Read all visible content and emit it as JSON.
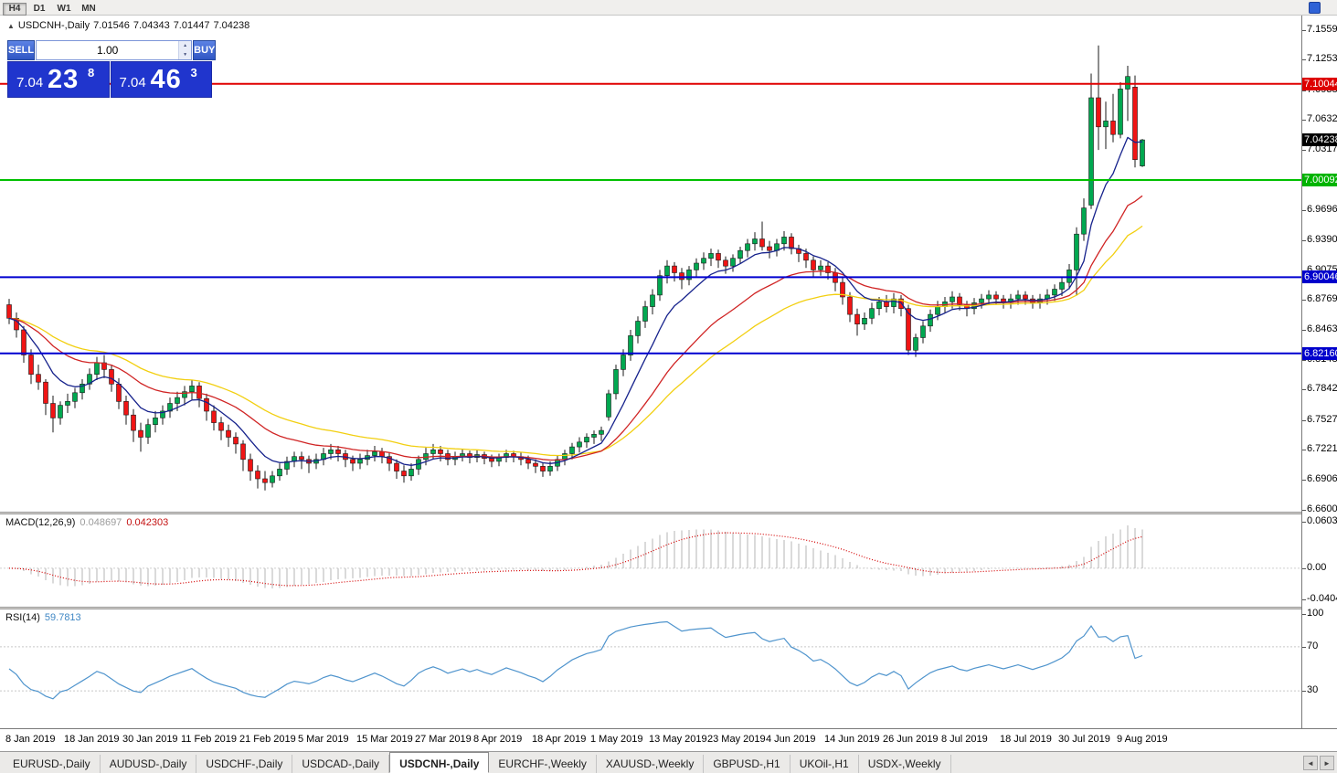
{
  "toolbar": {
    "timeframes": [
      {
        "label": "H4",
        "active": true
      },
      {
        "label": "D1",
        "active": false
      },
      {
        "label": "W1",
        "active": false
      },
      {
        "label": "MN",
        "active": false
      }
    ]
  },
  "chart_header": {
    "toggle_icon": "▲",
    "symbol": "USDCNH-,Daily",
    "open": "7.01546",
    "high": "7.04343",
    "low": "7.01447",
    "close": "7.04238"
  },
  "trade_panel": {
    "sell_label": "SELL",
    "buy_label": "BUY",
    "volume": "1.00",
    "spin_up": "▲",
    "spin_down": "▼",
    "sell_price": {
      "base": "7.04",
      "big": "23",
      "sup": "8"
    },
    "buy_price": {
      "base": "7.04",
      "big": "46",
      "sup": "3"
    }
  },
  "price_axis": {
    "ticks": [
      "7.15590",
      "7.12530",
      "7.09380",
      "7.06320",
      "7.03170",
      "6.96960",
      "6.93900",
      "6.90750",
      "6.87690",
      "6.84630",
      "6.81480",
      "6.78420",
      "6.75270",
      "6.72210",
      "6.69060",
      "6.66000"
    ],
    "badges": [
      {
        "label": "7.10044",
        "color": "#dd0000"
      },
      {
        "label": "7.04238",
        "color": "#000000"
      },
      {
        "label": "7.00092",
        "color": "#00b400"
      },
      {
        "label": "6.90046",
        "color": "#0000cc"
      },
      {
        "label": "6.82160",
        "color": "#0000cc"
      }
    ]
  },
  "hlines": [
    {
      "price": 7.10044,
      "color": "#e00000",
      "width": 2
    },
    {
      "price": 7.00092,
      "color": "#00c000",
      "width": 2
    },
    {
      "price": 6.90046,
      "color": "#0000d0",
      "width": 2
    },
    {
      "price": 6.8216,
      "color": "#0000d0",
      "width": 2
    }
  ],
  "macd_panel": {
    "label": "MACD(12,26,9)",
    "value_main": "0.048697",
    "value_signal": "0.042303",
    "ticks": [
      {
        "v": 0.060356,
        "label": "0.060356"
      },
      {
        "v": 0,
        "label": "0.00"
      },
      {
        "v": -0.040416,
        "label": "-0.040416"
      }
    ]
  },
  "rsi_panel": {
    "label": "RSI(14)",
    "value": "59.7813",
    "ticks": [
      {
        "v": 100,
        "label": "100"
      },
      {
        "v": 70,
        "label": "70"
      },
      {
        "v": 30,
        "label": "30"
      }
    ]
  },
  "date_axis": {
    "labels": [
      {
        "i": 0,
        "label": "8 Jan 2019"
      },
      {
        "i": 8,
        "label": "18 Jan 2019"
      },
      {
        "i": 16,
        "label": "30 Jan 2019"
      },
      {
        "i": 24,
        "label": "11 Feb 2019"
      },
      {
        "i": 32,
        "label": "21 Feb 2019"
      },
      {
        "i": 40,
        "label": "5 Mar 2019"
      },
      {
        "i": 48,
        "label": "15 Mar 2019"
      },
      {
        "i": 56,
        "label": "27 Mar 2019"
      },
      {
        "i": 64,
        "label": "8 Apr 2019"
      },
      {
        "i": 72,
        "label": "18 Apr 2019"
      },
      {
        "i": 80,
        "label": "1 May 2019"
      },
      {
        "i": 88,
        "label": "13 May 2019"
      },
      {
        "i": 96,
        "label": "23 May 2019"
      },
      {
        "i": 104,
        "label": "4 Jun 2019"
      },
      {
        "i": 112,
        "label": "14 Jun 2019"
      },
      {
        "i": 120,
        "label": "26 Jun 2019"
      },
      {
        "i": 128,
        "label": "8 Jul 2019"
      },
      {
        "i": 136,
        "label": "18 Jul 2019"
      },
      {
        "i": 144,
        "label": "30 Jul 2019"
      },
      {
        "i": 152,
        "label": "9 Aug 2019"
      }
    ]
  },
  "tabs": {
    "active_index": 4,
    "scroll_left": "◄",
    "scroll_right": "►",
    "items": [
      "EURUSD-,Daily",
      "AUDUSD-,Daily",
      "USDCHF-,Daily",
      "USDCAD-,Daily",
      "USDCNH-,Daily",
      "EURCHF-,Weekly",
      "XAUUSD-,Weekly",
      "GBPUSD-,H1",
      "UKOil-,H1",
      "USDX-,Weekly"
    ]
  },
  "chart_data": {
    "type": "candlestick",
    "symbol": "USDCNH",
    "timeframe": "Daily",
    "price_range": {
      "top": 7.171,
      "bottom": 6.658
    },
    "up_color": "#00a850",
    "down_color": "#f01414",
    "wick_color": "#1a1a1a",
    "body_outline": "#1a1a1a",
    "ma": [
      {
        "period": 8,
        "color": "#16228c"
      },
      {
        "period": 21,
        "color": "#d02424"
      },
      {
        "period": 34,
        "color": "#f2cf10"
      }
    ],
    "macd": {
      "fast": 12,
      "slow": 26,
      "signal": 9,
      "range": {
        "max": 0.07,
        "min": -0.05
      },
      "hist_color": "#b4b4b4",
      "signal_color": "#d40000",
      "zero_color": "#cfcfcf"
    },
    "rsi": {
      "period": 14,
      "range": {
        "max": 104,
        "min": -4
      },
      "color": "#4f94cd",
      "levels": [
        30,
        70
      ],
      "level_color": "#c8c8c8"
    },
    "candles": [
      [
        6.872,
        6.878,
        6.852,
        6.858
      ],
      [
        6.858,
        6.864,
        6.838,
        6.846
      ],
      [
        6.846,
        6.85,
        6.812,
        6.82
      ],
      [
        6.82,
        6.826,
        6.79,
        6.8
      ],
      [
        6.8,
        6.81,
        6.784,
        6.792
      ],
      [
        6.792,
        6.795,
        6.758,
        6.77
      ],
      [
        6.77,
        6.778,
        6.74,
        6.755
      ],
      [
        6.755,
        6.772,
        6.748,
        6.768
      ],
      [
        6.768,
        6.78,
        6.76,
        6.772
      ],
      [
        6.772,
        6.786,
        6.765,
        6.781
      ],
      [
        6.781,
        6.795,
        6.774,
        6.79
      ],
      [
        6.79,
        6.806,
        6.784,
        6.8
      ],
      [
        6.8,
        6.818,
        6.794,
        6.812
      ],
      [
        6.812,
        6.82,
        6.796,
        6.805
      ],
      [
        6.805,
        6.81,
        6.782,
        6.79
      ],
      [
        6.79,
        6.796,
        6.764,
        6.772
      ],
      [
        6.772,
        6.778,
        6.748,
        6.758
      ],
      [
        6.758,
        6.764,
        6.73,
        6.742
      ],
      [
        6.742,
        6.75,
        6.72,
        6.735
      ],
      [
        6.735,
        6.754,
        6.728,
        6.748
      ],
      [
        6.748,
        6.762,
        6.74,
        6.755
      ],
      [
        6.755,
        6.768,
        6.748,
        6.762
      ],
      [
        6.762,
        6.776,
        6.755,
        6.77
      ],
      [
        6.77,
        6.782,
        6.762,
        6.776
      ],
      [
        6.776,
        6.788,
        6.768,
        6.782
      ],
      [
        6.782,
        6.794,
        6.774,
        6.788
      ],
      [
        6.788,
        6.792,
        6.766,
        6.775
      ],
      [
        6.775,
        6.78,
        6.752,
        6.762
      ],
      [
        6.762,
        6.768,
        6.742,
        6.75
      ],
      [
        6.75,
        6.756,
        6.732,
        6.742
      ],
      [
        6.742,
        6.748,
        6.725,
        6.735
      ],
      [
        6.735,
        6.74,
        6.718,
        6.728
      ],
      [
        6.728,
        6.732,
        6.7,
        6.712
      ],
      [
        6.712,
        6.718,
        6.69,
        6.7
      ],
      [
        6.7,
        6.706,
        6.682,
        6.692
      ],
      [
        6.692,
        6.7,
        6.68,
        6.688
      ],
      [
        6.688,
        6.7,
        6.683,
        6.695
      ],
      [
        6.695,
        6.708,
        6.69,
        6.702
      ],
      [
        6.702,
        6.715,
        6.696,
        6.71
      ],
      [
        6.71,
        6.72,
        6.704,
        6.715
      ],
      [
        6.715,
        6.72,
        6.702,
        6.712
      ],
      [
        6.712,
        6.716,
        6.698,
        6.708
      ],
      [
        6.708,
        6.718,
        6.702,
        6.712
      ],
      [
        6.712,
        6.724,
        6.706,
        6.718
      ],
      [
        6.718,
        6.728,
        6.712,
        6.722
      ],
      [
        6.722,
        6.726,
        6.71,
        6.718
      ],
      [
        6.718,
        6.722,
        6.704,
        6.712
      ],
      [
        6.712,
        6.716,
        6.7,
        6.708
      ],
      [
        6.708,
        6.718,
        6.702,
        6.712
      ],
      [
        6.712,
        6.722,
        6.706,
        6.716
      ],
      [
        6.716,
        6.726,
        6.71,
        6.72
      ],
      [
        6.72,
        6.724,
        6.708,
        6.715
      ],
      [
        6.715,
        6.719,
        6.7,
        6.708
      ],
      [
        6.708,
        6.712,
        6.692,
        6.7
      ],
      [
        6.7,
        6.706,
        6.688,
        6.695
      ],
      [
        6.695,
        6.708,
        6.69,
        6.702
      ],
      [
        6.702,
        6.716,
        6.696,
        6.712
      ],
      [
        6.712,
        6.724,
        6.706,
        6.718
      ],
      [
        6.718,
        6.728,
        6.712,
        6.722
      ],
      [
        6.722,
        6.726,
        6.71,
        6.718
      ],
      [
        6.718,
        6.722,
        6.706,
        6.712
      ],
      [
        6.712,
        6.72,
        6.706,
        6.715
      ],
      [
        6.715,
        6.723,
        6.71,
        6.718
      ],
      [
        6.718,
        6.721,
        6.708,
        6.714
      ],
      [
        6.714,
        6.722,
        6.709,
        6.717
      ],
      [
        6.717,
        6.72,
        6.707,
        6.713
      ],
      [
        6.713,
        6.717,
        6.704,
        6.71
      ],
      [
        6.71,
        6.718,
        6.705,
        6.714
      ],
      [
        6.714,
        6.722,
        6.709,
        6.718
      ],
      [
        6.718,
        6.721,
        6.709,
        6.715
      ],
      [
        6.715,
        6.719,
        6.706,
        6.712
      ],
      [
        6.712,
        6.716,
        6.702,
        6.708
      ],
      [
        6.708,
        6.712,
        6.698,
        6.705
      ],
      [
        6.705,
        6.709,
        6.694,
        6.7
      ],
      [
        6.7,
        6.71,
        6.695,
        6.705
      ],
      [
        6.705,
        6.716,
        6.7,
        6.712
      ],
      [
        6.712,
        6.722,
        6.706,
        6.718
      ],
      [
        6.718,
        6.729,
        6.712,
        6.725
      ],
      [
        6.725,
        6.735,
        6.719,
        6.73
      ],
      [
        6.73,
        6.739,
        6.724,
        6.735
      ],
      [
        6.735,
        6.742,
        6.728,
        6.738
      ],
      [
        6.738,
        6.746,
        6.731,
        6.742
      ],
      [
        6.756,
        6.784,
        6.752,
        6.78
      ],
      [
        6.78,
        6.81,
        6.774,
        6.805
      ],
      [
        6.805,
        6.826,
        6.798,
        6.82
      ],
      [
        6.82,
        6.846,
        6.814,
        6.84
      ],
      [
        6.84,
        6.86,
        6.832,
        6.855
      ],
      [
        6.855,
        6.876,
        6.848,
        6.87
      ],
      [
        6.87,
        6.888,
        6.862,
        6.882
      ],
      [
        6.882,
        6.908,
        6.876,
        6.902
      ],
      [
        6.902,
        6.918,
        6.894,
        6.912
      ],
      [
        6.912,
        6.916,
        6.896,
        6.905
      ],
      [
        6.905,
        6.91,
        6.888,
        6.898
      ],
      [
        6.898,
        6.912,
        6.892,
        6.908
      ],
      [
        6.908,
        6.92,
        6.9,
        6.915
      ],
      [
        6.915,
        6.926,
        6.908,
        6.92
      ],
      [
        6.92,
        6.93,
        6.912,
        6.925
      ],
      [
        6.925,
        6.929,
        6.91,
        6.918
      ],
      [
        6.918,
        6.922,
        6.904,
        6.912
      ],
      [
        6.912,
        6.924,
        6.906,
        6.92
      ],
      [
        6.92,
        6.932,
        6.914,
        6.928
      ],
      [
        6.928,
        6.94,
        6.921,
        6.935
      ],
      [
        6.935,
        6.947,
        6.928,
        6.94
      ],
      [
        6.94,
        6.958,
        6.928,
        6.932
      ],
      [
        6.932,
        6.938,
        6.92,
        6.928
      ],
      [
        6.928,
        6.94,
        6.922,
        6.935
      ],
      [
        6.935,
        6.948,
        6.928,
        6.942
      ],
      [
        6.942,
        6.946,
        6.924,
        6.93
      ],
      [
        6.93,
        6.934,
        6.916,
        6.925
      ],
      [
        6.925,
        6.93,
        6.91,
        6.918
      ],
      [
        6.918,
        6.922,
        6.9,
        6.908
      ],
      [
        6.908,
        6.918,
        6.902,
        6.912
      ],
      [
        6.912,
        6.916,
        6.898,
        6.905
      ],
      [
        6.905,
        6.91,
        6.886,
        6.895
      ],
      [
        6.895,
        6.9,
        6.872,
        6.88
      ],
      [
        6.88,
        6.885,
        6.854,
        6.862
      ],
      [
        6.862,
        6.868,
        6.84,
        6.852
      ],
      [
        6.852,
        6.864,
        6.846,
        6.858
      ],
      [
        6.858,
        6.874,
        6.852,
        6.868
      ],
      [
        6.868,
        6.88,
        6.861,
        6.875
      ],
      [
        6.875,
        6.882,
        6.864,
        6.87
      ],
      [
        6.87,
        6.884,
        6.863,
        6.878
      ],
      [
        6.878,
        6.882,
        6.86,
        6.868
      ],
      [
        6.868,
        6.872,
        6.82,
        6.825
      ],
      [
        6.825,
        6.842,
        6.818,
        6.838
      ],
      [
        6.838,
        6.855,
        6.832,
        6.85
      ],
      [
        6.85,
        6.867,
        6.844,
        6.862
      ],
      [
        6.862,
        6.876,
        6.856,
        6.87
      ],
      [
        6.87,
        6.88,
        6.863,
        6.875
      ],
      [
        6.875,
        6.886,
        6.868,
        6.88
      ],
      [
        6.88,
        6.884,
        6.866,
        6.872
      ],
      [
        6.872,
        6.876,
        6.86,
        6.868
      ],
      [
        6.868,
        6.879,
        6.862,
        6.874
      ],
      [
        6.874,
        6.883,
        6.868,
        6.878
      ],
      [
        6.878,
        6.887,
        6.872,
        6.882
      ],
      [
        6.882,
        6.886,
        6.872,
        6.878
      ],
      [
        6.878,
        6.882,
        6.868,
        6.874
      ],
      [
        6.874,
        6.883,
        6.868,
        6.878
      ],
      [
        6.878,
        6.887,
        6.872,
        6.882
      ],
      [
        6.882,
        6.886,
        6.872,
        6.878
      ],
      [
        6.878,
        6.882,
        6.868,
        6.874
      ],
      [
        6.874,
        6.883,
        6.868,
        6.878
      ],
      [
        6.878,
        6.888,
        6.872,
        6.882
      ],
      [
        6.882,
        6.893,
        6.876,
        6.888
      ],
      [
        6.888,
        6.9,
        6.881,
        6.895
      ],
      [
        6.895,
        6.914,
        6.888,
        6.908
      ],
      [
        6.908,
        6.952,
        6.882,
        6.945
      ],
      [
        6.945,
        6.982,
        6.938,
        6.972
      ],
      [
        6.975,
        7.111,
        6.971,
        7.086
      ],
      [
        7.086,
        7.14,
        7.032,
        7.056
      ],
      [
        7.056,
        7.082,
        7.033,
        7.062
      ],
      [
        7.062,
        7.09,
        7.04,
        7.048
      ],
      [
        7.048,
        7.102,
        7.044,
        7.095
      ],
      [
        7.095,
        7.119,
        7.062,
        7.108
      ],
      [
        7.097,
        7.109,
        7.014,
        7.022
      ],
      [
        7.0155,
        7.0434,
        7.0145,
        7.0424
      ]
    ]
  }
}
